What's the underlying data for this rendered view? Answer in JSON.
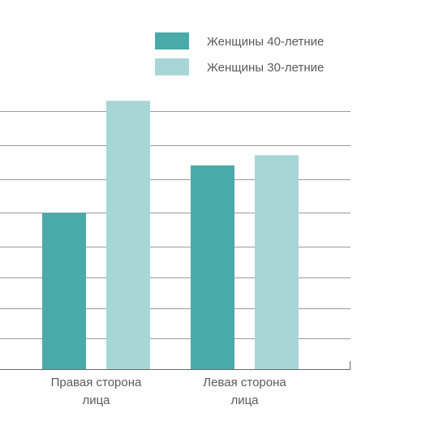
{
  "chart_data": {
    "type": "bar",
    "categories": [
      [
        "Правая сторона",
        "лица"
      ],
      [
        "Левая сторона",
        "лица"
      ]
    ],
    "series": [
      {
        "name": "Женщины 40-летние",
        "values": [
          4.6,
          6.0
        ],
        "color": "#4aaaa9"
      },
      {
        "name": "Женщины 30-летние",
        "values": [
          7.9,
          6.3
        ],
        "color": "#a8d6d6"
      }
    ],
    "ylim": [
      0,
      8.6
    ],
    "grid": true,
    "gridline_values": [
      0.9,
      1.8,
      2.7,
      3.6,
      4.6,
      5.6,
      6.6,
      7.6
    ],
    "legend_position": "top-right",
    "grid_color": "#9a9a9a",
    "axis_color": "#6a6a6a"
  }
}
